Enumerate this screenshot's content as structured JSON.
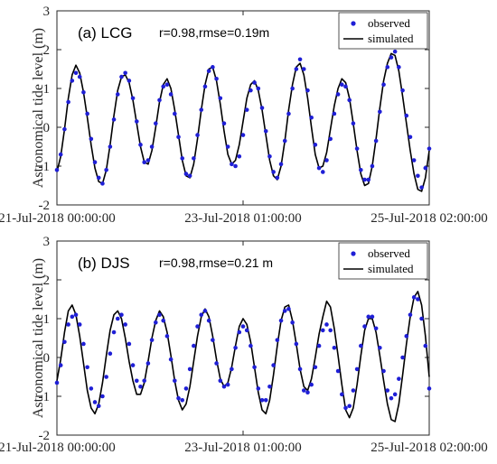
{
  "chart_data": [
    {
      "type": "line",
      "title": "(a) LCG",
      "annotation": "r=0.98,rmse=0.19m",
      "ylabel": "Astronomical tide level (m)",
      "xlabel": "",
      "ylim": [
        -2,
        3
      ],
      "yticks": [
        "-2",
        "-1",
        "0",
        "1",
        "2",
        "3"
      ],
      "xlim_hours": [
        0,
        98
      ],
      "xtick_labels": [
        "21-Jul-2018 00:00:00",
        "23-Jul-2018 01:00:00",
        "25-Jul-2018 02:00:00"
      ],
      "legend_position": "top-right",
      "series": [
        {
          "name": "observed",
          "style": "points",
          "color": "#1f1fd6",
          "x_hours": [
            0,
            1,
            2,
            3,
            4,
            5,
            6,
            7,
            8,
            9,
            10,
            11,
            12,
            13,
            14,
            15,
            16,
            17,
            18,
            19,
            20,
            21,
            22,
            23,
            24,
            25,
            26,
            27,
            28,
            29,
            30,
            31,
            32,
            33,
            34,
            35,
            36,
            37,
            38,
            39,
            40,
            41,
            42,
            43,
            44,
            45,
            46,
            47,
            48,
            49,
            50,
            51,
            52,
            53,
            54,
            55,
            56,
            57,
            58,
            59,
            60,
            61,
            62,
            63,
            64,
            65,
            66,
            67,
            68,
            69,
            70,
            71,
            72,
            73,
            74,
            75,
            76,
            77,
            78,
            79,
            80,
            81,
            82,
            83,
            84,
            85,
            86,
            87,
            88,
            89,
            90,
            91,
            92,
            93,
            94,
            95,
            96,
            97,
            98
          ],
          "values": [
            -1.1,
            -0.7,
            -0.05,
            0.65,
            1.2,
            1.4,
            1.3,
            0.9,
            0.35,
            -0.3,
            -0.9,
            -1.3,
            -1.45,
            -1.1,
            -0.5,
            0.2,
            0.85,
            1.3,
            1.4,
            1.2,
            0.75,
            0.15,
            -0.45,
            -0.9,
            -0.85,
            -0.5,
            0.1,
            0.7,
            1.05,
            1.1,
            0.85,
            0.35,
            -0.25,
            -0.8,
            -1.2,
            -1.25,
            -0.8,
            -0.2,
            0.45,
            1.05,
            1.45,
            1.55,
            1.25,
            0.75,
            0.1,
            -0.5,
            -0.95,
            -1.0,
            -0.75,
            -0.2,
            0.45,
            0.95,
            1.15,
            1.0,
            0.5,
            -0.1,
            -0.75,
            -1.15,
            -1.3,
            -0.95,
            -0.35,
            0.35,
            1.0,
            1.5,
            1.75,
            1.5,
            0.95,
            0.25,
            -0.45,
            -1.05,
            -1.15,
            -0.85,
            -0.3,
            0.35,
            0.85,
            1.1,
            1.05,
            0.7,
            0.1,
            -0.55,
            -1.1,
            -1.35,
            -1.35,
            -1.0,
            -0.35,
            0.4,
            1.1,
            1.55,
            1.8,
            1.95,
            1.55,
            0.95,
            0.3,
            -0.25,
            -0.85,
            -1.25,
            -1.55,
            -1.05,
            -0.55
          ]
        },
        {
          "name": "simulated",
          "style": "line",
          "color": "#000000",
          "x_hours": [
            0,
            1,
            2,
            3,
            4,
            5,
            6,
            7,
            8,
            9,
            10,
            11,
            12,
            13,
            14,
            15,
            16,
            17,
            18,
            19,
            20,
            21,
            22,
            23,
            24,
            25,
            26,
            27,
            28,
            29,
            30,
            31,
            32,
            33,
            34,
            35,
            36,
            37,
            38,
            39,
            40,
            41,
            42,
            43,
            44,
            45,
            46,
            47,
            48,
            49,
            50,
            51,
            52,
            53,
            54,
            55,
            56,
            57,
            58,
            59,
            60,
            61,
            62,
            63,
            64,
            65,
            66,
            67,
            68,
            69,
            70,
            71,
            72,
            73,
            74,
            75,
            76,
            77,
            78,
            79,
            80,
            81,
            82,
            83,
            84,
            85,
            86,
            87,
            88,
            89,
            90,
            91,
            92,
            93,
            94,
            95,
            96,
            97,
            98
          ],
          "values": [
            -1.15,
            -0.75,
            -0.05,
            0.75,
            1.35,
            1.6,
            1.4,
            0.9,
            0.25,
            -0.45,
            -1.05,
            -1.4,
            -1.45,
            -1.1,
            -0.45,
            0.3,
            0.95,
            1.3,
            1.35,
            1.15,
            0.7,
            0.1,
            -0.5,
            -0.9,
            -0.95,
            -0.6,
            0.0,
            0.65,
            1.1,
            1.25,
            1.0,
            0.45,
            -0.2,
            -0.85,
            -1.25,
            -1.3,
            -0.95,
            -0.3,
            0.45,
            1.1,
            1.5,
            1.55,
            1.2,
            0.6,
            -0.1,
            -0.7,
            -0.95,
            -0.85,
            -0.45,
            0.15,
            0.75,
            1.1,
            1.2,
            0.95,
            0.45,
            -0.2,
            -0.85,
            -1.25,
            -1.35,
            -1.0,
            -0.35,
            0.45,
            1.1,
            1.55,
            1.65,
            1.35,
            0.75,
            0.0,
            -0.7,
            -1.05,
            -1.0,
            -0.65,
            -0.05,
            0.55,
            1.0,
            1.25,
            1.15,
            0.75,
            0.1,
            -0.6,
            -1.2,
            -1.5,
            -1.45,
            -1.0,
            -0.3,
            0.5,
            1.2,
            1.65,
            1.9,
            1.85,
            1.45,
            0.8,
            0.1,
            -0.6,
            -1.2,
            -1.6,
            -1.65,
            -1.3,
            -0.6
          ]
        }
      ]
    },
    {
      "type": "line",
      "title": "(b) DJS",
      "annotation": "r=0.98,rmse=0.21 m",
      "ylabel": "Astronomical tide level (m)",
      "xlabel": "",
      "ylim": [
        -2,
        3
      ],
      "yticks": [
        "-2",
        "-1",
        "0",
        "1",
        "2",
        "3"
      ],
      "xlim_hours": [
        0,
        98
      ],
      "xtick_labels": [
        "21-Jul-2018 00:00:00",
        "23-Jul-2018 01:00:00",
        "25-Jul-2018 02:00:00"
      ],
      "legend_position": "top-right",
      "series": [
        {
          "name": "observed",
          "style": "points",
          "color": "#1f1fd6",
          "x_hours": [
            0,
            1,
            2,
            3,
            4,
            5,
            6,
            7,
            8,
            9,
            10,
            11,
            12,
            13,
            14,
            15,
            16,
            17,
            18,
            19,
            20,
            21,
            22,
            23,
            24,
            25,
            26,
            27,
            28,
            29,
            30,
            31,
            32,
            33,
            34,
            35,
            36,
            37,
            38,
            39,
            40,
            41,
            42,
            43,
            44,
            45,
            46,
            47,
            48,
            49,
            50,
            51,
            52,
            53,
            54,
            55,
            56,
            57,
            58,
            59,
            60,
            61,
            62,
            63,
            64,
            65,
            66,
            67,
            68,
            69,
            70,
            71,
            72,
            73,
            74,
            75,
            76,
            77,
            78,
            79,
            80,
            81,
            82,
            83,
            84,
            85,
            86,
            87,
            88,
            89,
            90,
            91,
            92,
            93,
            94,
            95,
            96,
            97,
            98
          ],
          "values": [
            -0.65,
            -0.2,
            0.4,
            0.85,
            1.05,
            1.1,
            0.85,
            0.35,
            -0.25,
            -0.8,
            -1.15,
            -1.25,
            -1.0,
            -0.5,
            0.1,
            0.65,
            1.0,
            1.1,
            0.85,
            0.35,
            -0.2,
            -0.6,
            -0.75,
            -0.6,
            -0.15,
            0.45,
            0.9,
            1.1,
            0.95,
            0.55,
            -0.05,
            -0.6,
            -1.05,
            -1.1,
            -0.8,
            -0.3,
            0.3,
            0.8,
            1.1,
            1.2,
            0.95,
            0.45,
            -0.15,
            -0.6,
            -0.75,
            -0.7,
            -0.3,
            0.25,
            0.65,
            0.8,
            0.7,
            0.3,
            -0.25,
            -0.8,
            -1.1,
            -1.1,
            -0.75,
            -0.2,
            0.45,
            0.95,
            1.2,
            1.25,
            0.9,
            0.35,
            -0.3,
            -0.85,
            -0.9,
            -0.7,
            -0.25,
            0.3,
            0.7,
            0.85,
            0.7,
            0.25,
            -0.35,
            -0.95,
            -1.3,
            -1.25,
            -0.85,
            -0.3,
            0.3,
            0.8,
            1.05,
            1.05,
            0.75,
            0.25,
            -0.35,
            -0.85,
            -1.05,
            -0.95,
            -0.55,
            0.0,
            0.55,
            1.1,
            1.55,
            1.5,
            1.0,
            0.3,
            -0.8
          ]
        },
        {
          "name": "simulated",
          "style": "line",
          "color": "#000000",
          "x_hours": [
            0,
            1,
            2,
            3,
            4,
            5,
            6,
            7,
            8,
            9,
            10,
            11,
            12,
            13,
            14,
            15,
            16,
            17,
            18,
            19,
            20,
            21,
            22,
            23,
            24,
            25,
            26,
            27,
            28,
            29,
            30,
            31,
            32,
            33,
            34,
            35,
            36,
            37,
            38,
            39,
            40,
            41,
            42,
            43,
            44,
            45,
            46,
            47,
            48,
            49,
            50,
            51,
            52,
            53,
            54,
            55,
            56,
            57,
            58,
            59,
            60,
            61,
            62,
            63,
            64,
            65,
            66,
            67,
            68,
            69,
            70,
            71,
            72,
            73,
            74,
            75,
            76,
            77,
            78,
            79,
            80,
            81,
            82,
            83,
            84,
            85,
            86,
            87,
            88,
            89,
            90,
            91,
            92,
            93,
            94,
            95,
            96,
            97,
            98
          ],
          "values": [
            -0.6,
            -0.05,
            0.65,
            1.2,
            1.35,
            1.1,
            0.55,
            -0.15,
            -0.85,
            -1.3,
            -1.45,
            -1.2,
            -0.65,
            0.05,
            0.7,
            1.1,
            1.2,
            1.0,
            0.5,
            -0.1,
            -0.6,
            -0.95,
            -0.95,
            -0.65,
            -0.1,
            0.5,
            0.95,
            1.2,
            1.05,
            0.65,
            0.05,
            -0.6,
            -1.1,
            -1.35,
            -1.2,
            -0.75,
            -0.1,
            0.55,
            1.05,
            1.25,
            1.05,
            0.55,
            -0.05,
            -0.55,
            -0.75,
            -0.65,
            -0.25,
            0.3,
            0.8,
            1.0,
            0.85,
            0.4,
            -0.25,
            -0.9,
            -1.35,
            -1.45,
            -1.1,
            -0.45,
            0.3,
            0.95,
            1.3,
            1.35,
            0.95,
            0.35,
            -0.3,
            -0.75,
            -0.85,
            -0.55,
            0.0,
            0.6,
            1.05,
            1.45,
            1.3,
            0.75,
            0.05,
            -0.7,
            -1.35,
            -1.55,
            -1.3,
            -0.7,
            0.05,
            0.7,
            1.0,
            1.0,
            0.65,
            0.05,
            -0.6,
            -1.2,
            -1.6,
            -1.65,
            -1.2,
            -0.45,
            0.35,
            1.05,
            1.55,
            1.7,
            1.35,
            0.55,
            -0.5
          ]
        }
      ]
    }
  ]
}
